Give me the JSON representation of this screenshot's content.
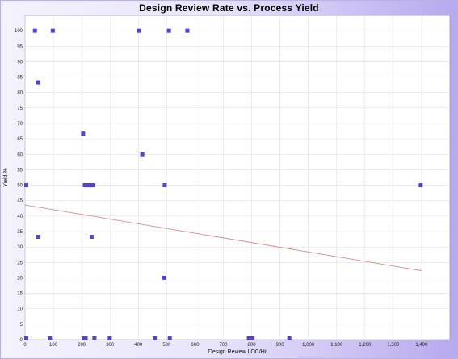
{
  "chart_data": {
    "type": "scatter",
    "title": "Design Review Rate vs. Process Yield",
    "xlabel": "Design Review LOC/Hr",
    "ylabel": "Yield %",
    "xlim": [
      0,
      1500
    ],
    "ylim": [
      0,
      105
    ],
    "x_ticks": [
      0,
      100,
      200,
      300,
      400,
      500,
      600,
      700,
      800,
      900,
      1000,
      1100,
      1200,
      1300,
      1400
    ],
    "x_tick_labels": [
      "0",
      "100",
      "200",
      "300",
      "400",
      "500",
      "600",
      "700",
      "800",
      "900",
      "1,000",
      "1,100",
      "1,200",
      "1,300",
      "1,400"
    ],
    "y_ticks": [
      0,
      5,
      10,
      15,
      20,
      25,
      30,
      35,
      40,
      45,
      50,
      55,
      60,
      65,
      70,
      75,
      80,
      85,
      90,
      95,
      100
    ],
    "grid": true,
    "series": [
      {
        "points": [
          [
            35,
            100
          ],
          [
            98,
            100
          ],
          [
            402,
            100
          ],
          [
            508,
            100
          ],
          [
            573,
            100
          ],
          [
            47,
            83.3
          ],
          [
            205,
            66.7
          ],
          [
            414,
            60
          ],
          [
            0,
            50
          ],
          [
            211,
            50
          ],
          [
            217,
            50
          ],
          [
            223,
            50
          ],
          [
            229,
            50
          ],
          [
            235,
            50
          ],
          [
            241,
            50
          ],
          [
            493,
            50
          ],
          [
            1397,
            50
          ],
          [
            47,
            33.3
          ],
          [
            235,
            33.3
          ],
          [
            491,
            20
          ],
          [
            4,
            0
          ],
          [
            88,
            0
          ],
          [
            208,
            0
          ],
          [
            214,
            0
          ],
          [
            245,
            0
          ],
          [
            299,
            0
          ],
          [
            458,
            0
          ],
          [
            511,
            0
          ],
          [
            790,
            0
          ],
          [
            803,
            0
          ],
          [
            933,
            0
          ]
        ],
        "color": "#5a3fd6"
      }
    ],
    "trendline": {
      "x": [
        0,
        1400
      ],
      "y": [
        43.6,
        22.3
      ],
      "color": "#d98a8a"
    }
  }
}
